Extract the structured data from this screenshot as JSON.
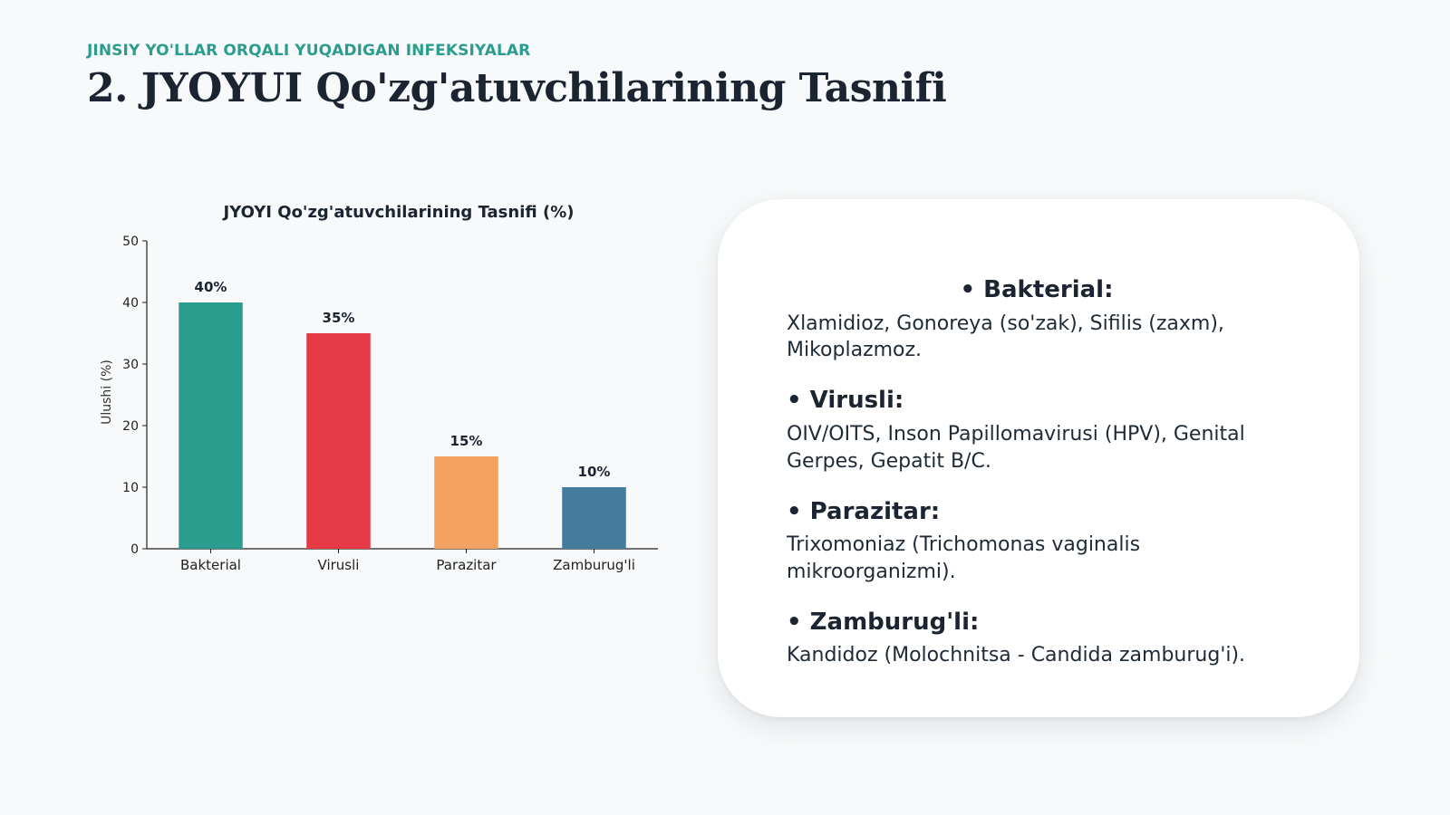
{
  "header": {
    "subtitle": "JINSIY YO'LLAR ORQALI YUQADIGAN INFEKSIYALAR",
    "title": "2. JYOYUI Qo'zg'atuvchilarining Tasnifi"
  },
  "chart_data": {
    "type": "bar",
    "title": "JYOYI Qo'zg'atuvchilarining Tasnifi (%)",
    "xlabel": "",
    "ylabel": "Ulushi (%)",
    "categories": [
      "Bakterial",
      "Virusli",
      "Parazitar",
      "Zamburug'li"
    ],
    "values": [
      40,
      35,
      15,
      10
    ],
    "value_labels": [
      "40%",
      "35%",
      "15%",
      "10%"
    ],
    "colors": [
      "#2a9d8f",
      "#e63946",
      "#f4a261",
      "#457b9d"
    ],
    "ylim": [
      0,
      50
    ],
    "yticks": [
      0,
      10,
      20,
      30,
      40,
      50
    ],
    "grid": false,
    "legend": "none"
  },
  "info": {
    "items": [
      {
        "heading": "• Bakterial:",
        "text": "Xlamidioz, Gonoreya (so'zak), Sifilis (zaxm), Mikoplazmoz."
      },
      {
        "heading": "• Virusli:",
        "text": "OIV/OITS, Inson Papillomavirusi (HPV), Genital Gerpes, Gepatit B/C."
      },
      {
        "heading": "• Parazitar:",
        "text": "Trixomoniaz (Trichomonas vaginalis mikroorganizmi)."
      },
      {
        "heading": "• Zamburug'li:",
        "text": "Kandidoz (Molochnitsa - Candida zamburug'i)."
      }
    ]
  }
}
